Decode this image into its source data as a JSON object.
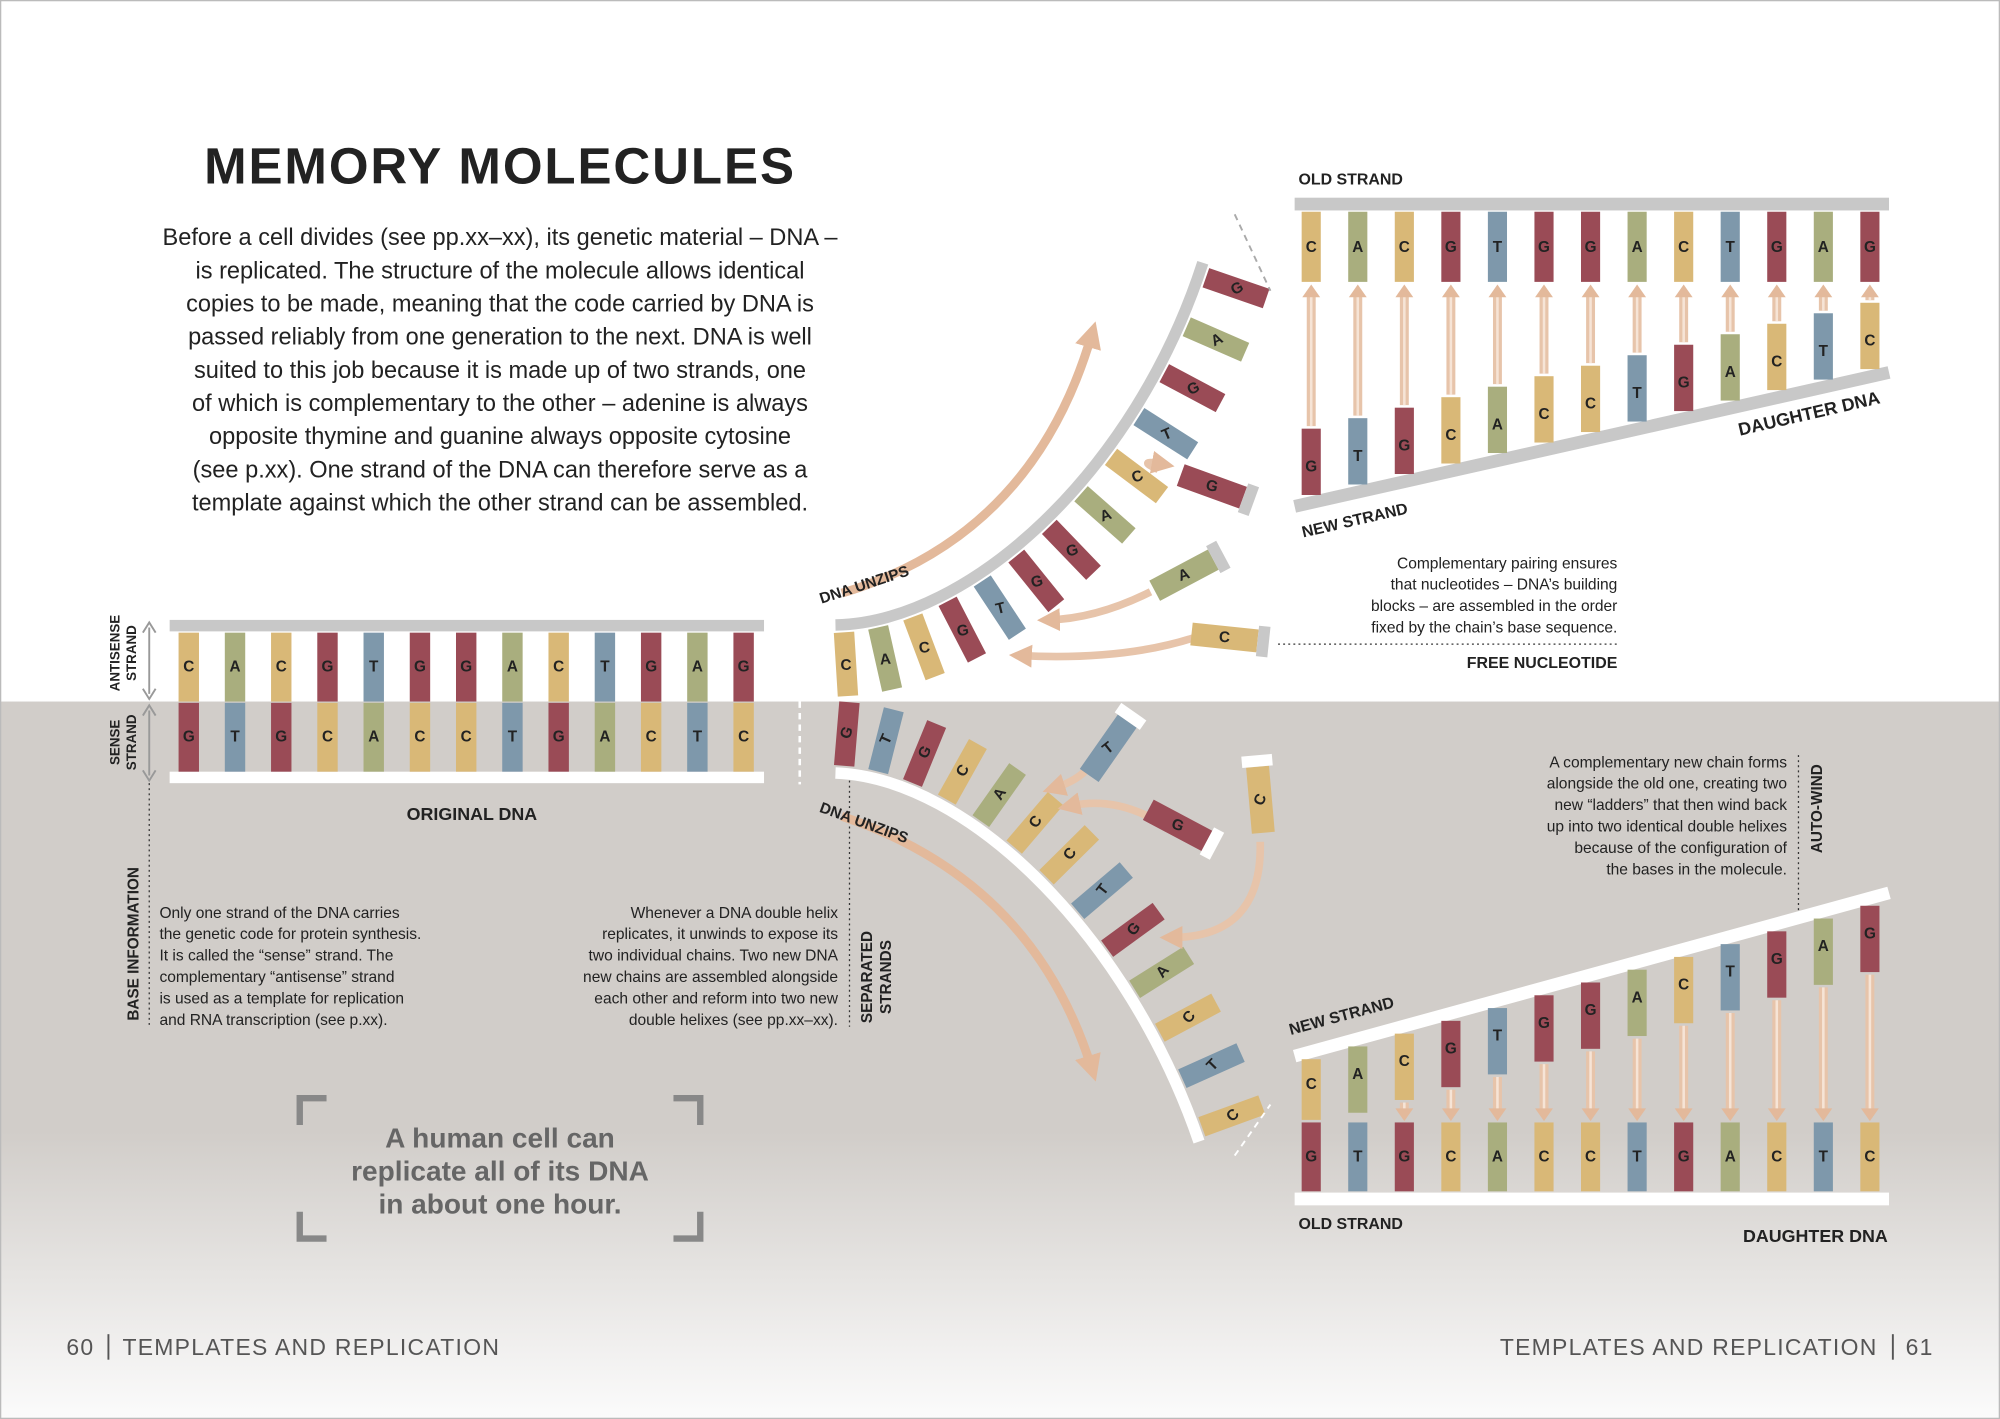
{
  "title": "MEMORY MOLECULES",
  "intro": [
    "Before a cell divides (see pp.xx–xx), its genetic material – DNA –",
    "is replicated. The structure of the molecule allows identical",
    "copies to be made, meaning that the code carried by DNA is",
    "passed reliably from one generation to the next. DNA is well",
    "suited to this job because it is made up of two strands, one",
    "of which is complementary to the other – adenine is always",
    "opposite thymine and guanine always opposite cytosine",
    "(see p.xx). One strand of the DNA can therefore serve as a",
    "template against which the other strand can be assembled."
  ],
  "base_colors": {
    "A": "#a9ae7e",
    "C": "#d9b877",
    "G": "#9a4b56",
    "T": "#7e98ab"
  },
  "original_dna": {
    "label": "ORIGINAL DNA",
    "antisense_label": [
      "ANTISENSE",
      "STRAND"
    ],
    "sense_label": [
      "SENSE",
      "STRAND"
    ],
    "antisense": [
      "C",
      "A",
      "C",
      "G",
      "T",
      "G",
      "G",
      "A",
      "C",
      "T",
      "G",
      "A",
      "G"
    ],
    "sense": [
      "G",
      "T",
      "G",
      "C",
      "A",
      "C",
      "C",
      "T",
      "G",
      "A",
      "C",
      "T",
      "C"
    ]
  },
  "base_information": {
    "label": "BASE INFORMATION",
    "lines": [
      "Only one strand of the DNA carries",
      "the genetic code for protein synthesis.",
      "It is called the “sense” strand. The",
      "complementary “antisense” strand",
      "is used as a template for replication",
      "and RNA transcription (see p.xx)."
    ]
  },
  "separated_strands": {
    "label": [
      "SEPARATED",
      "STRANDS"
    ],
    "lines": [
      "Whenever a DNA double helix",
      "replicates, it unwinds to expose its",
      "two individual chains. Two new DNA",
      "new chains are assembled alongside",
      "each other and reform into two new",
      "double helixes (see pp.xx–xx)."
    ]
  },
  "fork": {
    "unzip_labels": [
      "DNA UNZIPS",
      "DNA UNZIPS"
    ],
    "upper_strand": [
      "C",
      "A",
      "C",
      "G",
      "T",
      "G",
      "G",
      "A",
      "C",
      "T",
      "G",
      "A",
      "G"
    ],
    "lower_strand": [
      "G",
      "T",
      "G",
      "C",
      "A",
      "C",
      "C",
      "T",
      "G",
      "A",
      "C",
      "T",
      "C"
    ],
    "upper_free": [
      "G",
      "A",
      "C"
    ],
    "lower_free": [
      "T",
      "G",
      "C"
    ]
  },
  "free_nucleotide": {
    "lines": [
      "Complementary pairing ensures",
      "that nucleotides – DNA’s building",
      "blocks – are assembled in the order",
      "fixed by the chain’s base sequence."
    ],
    "label": "FREE NUCLEOTIDE"
  },
  "top_daughter": {
    "old_label": "OLD STRAND",
    "new_label": "NEW STRAND",
    "daughter_label": "DAUGHTER DNA",
    "old_strand": [
      "C",
      "A",
      "C",
      "G",
      "T",
      "G",
      "G",
      "A",
      "C",
      "T",
      "G",
      "A",
      "G"
    ],
    "new_strand": [
      "G",
      "T",
      "G",
      "C",
      "A",
      "C",
      "C",
      "T",
      "G",
      "A",
      "C",
      "T",
      "C"
    ]
  },
  "bottom_daughter": {
    "new_label": "NEW STRAND",
    "old_label": "OLD STRAND",
    "daughter_label": "DAUGHTER DNA",
    "new_strand": [
      "C",
      "A",
      "C",
      "G",
      "T",
      "G",
      "G",
      "A",
      "C",
      "T",
      "G",
      "A",
      "G"
    ],
    "old_strand": [
      "G",
      "T",
      "G",
      "C",
      "A",
      "C",
      "C",
      "T",
      "G",
      "A",
      "C",
      "T",
      "C"
    ]
  },
  "auto_wind": {
    "label": "AUTO-WIND",
    "lines": [
      "A complementary new chain forms",
      "alongside the old one, creating two",
      "new “ladders” that then wind back",
      "up into two identical double helixes",
      "because of the configuration of",
      "the bases in the molecule."
    ]
  },
  "fact": {
    "lines": [
      "A human cell can",
      "replicate all of its DNA",
      "in about one hour."
    ]
  },
  "footer": {
    "left": {
      "page": "60",
      "section": "TEMPLATES AND REPLICATION"
    },
    "right": {
      "section": "TEMPLATES AND REPLICATION",
      "page": "61"
    }
  }
}
